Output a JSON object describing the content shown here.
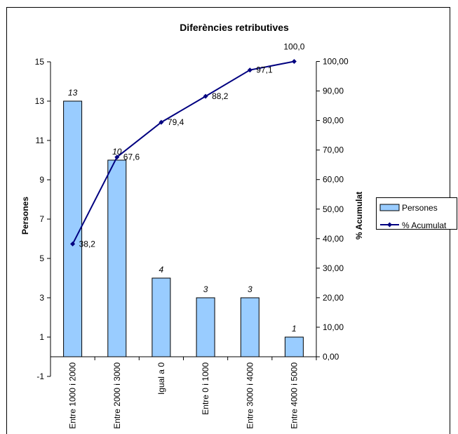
{
  "chart_data": {
    "type": "bar",
    "title": "Diferències retributives",
    "xlabel": "",
    "ylabel": "Persones",
    "y2label": "% Acumulat",
    "categories": [
      "Entre 1000 i 2000",
      "Entre 2000 i 3000",
      "Igual a 0",
      "Entre 0 i 1000",
      "Entre 3000 i 4000",
      "Entre 4000 i 5000"
    ],
    "series": [
      {
        "name": "Persones",
        "type": "bar",
        "axis": "left",
        "color": "#99ccff",
        "values": [
          13,
          10,
          4,
          3,
          3,
          1
        ],
        "labels": [
          "13",
          "10",
          "4",
          "3",
          "3",
          "1"
        ]
      },
      {
        "name": "% Acumulat",
        "type": "line",
        "axis": "right",
        "color": "#000080",
        "values": [
          38.2,
          67.6,
          79.4,
          88.2,
          97.1,
          100.0
        ],
        "labels": [
          "38,2",
          "67,6",
          "79,4",
          "88,2",
          "97,1",
          "100,0"
        ]
      }
    ],
    "ylim": [
      -1,
      15
    ],
    "yticks": [
      -1,
      1,
      3,
      5,
      7,
      9,
      11,
      13,
      15
    ],
    "ytick_labels": [
      "-1",
      "1",
      "3",
      "5",
      "7",
      "9",
      "11",
      "13",
      "15"
    ],
    "y2lim": [
      0,
      100
    ],
    "y2ticks": [
      0,
      10,
      20,
      30,
      40,
      50,
      60,
      70,
      80,
      90,
      100
    ],
    "y2tick_labels": [
      "0,00",
      "10,00",
      "20,00",
      "30,00",
      "40,00",
      "50,00",
      "60,00",
      "70,00",
      "80,00",
      "90,00",
      "100,00"
    ],
    "grid": false,
    "legend_position": "right"
  }
}
